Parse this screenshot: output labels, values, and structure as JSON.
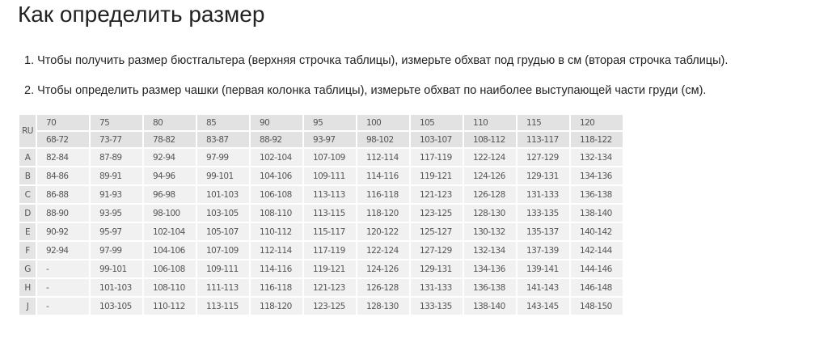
{
  "title": "Как определить размер",
  "instructions": [
    "1. Чтобы получить размер бюстгальтера (верхняя строчка таблицы), измерьте обхват под грудью в см (вторая строчка таблицы).",
    "2. Чтобы определить размер чашки (первая колонка таблицы), измерьте обхват по наиболее выступающей части груди (см)."
  ],
  "table": {
    "corner": "RU",
    "sizes": [
      "70",
      "75",
      "80",
      "85",
      "90",
      "95",
      "100",
      "105",
      "110",
      "115",
      "120"
    ],
    "underbust": [
      "68-72",
      "73-77",
      "78-82",
      "83-87",
      "88-92",
      "93-97",
      "98-102",
      "103-107",
      "108-112",
      "113-117",
      "118-122"
    ],
    "rows": [
      {
        "cup": "A",
        "values": [
          "82-84",
          "87-89",
          "92-94",
          "97-99",
          "102-104",
          "107-109",
          "112-114",
          "117-119",
          "122-124",
          "127-129",
          "132-134"
        ]
      },
      {
        "cup": "B",
        "values": [
          "84-86",
          "89-91",
          "94-96",
          "99-101",
          "104-106",
          "109-111",
          "114-116",
          "119-121",
          "124-126",
          "129-131",
          "134-136"
        ]
      },
      {
        "cup": "C",
        "values": [
          "86-88",
          "91-93",
          "96-98",
          "101-103",
          "106-108",
          "113-113",
          "116-118",
          "121-123",
          "126-128",
          "131-133",
          "136-138"
        ]
      },
      {
        "cup": "D",
        "values": [
          "88-90",
          "93-95",
          "98-100",
          "103-105",
          "108-110",
          "113-115",
          "118-120",
          "123-125",
          "128-130",
          "133-135",
          "138-140"
        ]
      },
      {
        "cup": "E",
        "values": [
          "90-92",
          "95-97",
          "102-104",
          "105-107",
          "110-112",
          "115-117",
          "120-122",
          "125-127",
          "130-132",
          "135-137",
          "140-142"
        ]
      },
      {
        "cup": "F",
        "values": [
          "92-94",
          "97-99",
          "104-106",
          "107-109",
          "112-114",
          "117-119",
          "122-124",
          "127-129",
          "132-134",
          "137-139",
          "142-144"
        ]
      },
      {
        "cup": "G",
        "values": [
          "-",
          "99-101",
          "106-108",
          "109-111",
          "114-116",
          "119-121",
          "124-126",
          "129-131",
          "134-136",
          "139-141",
          "144-146"
        ]
      },
      {
        "cup": "H",
        "values": [
          "-",
          "101-103",
          "108-110",
          "111-113",
          "116-118",
          "121-123",
          "126-128",
          "131-133",
          "136-138",
          "141-143",
          "146-148"
        ]
      },
      {
        "cup": "J",
        "values": [
          "-",
          "103-105",
          "110-112",
          "113-115",
          "118-120",
          "123-125",
          "128-130",
          "133-135",
          "138-140",
          "143-145",
          "148-150"
        ]
      }
    ]
  }
}
